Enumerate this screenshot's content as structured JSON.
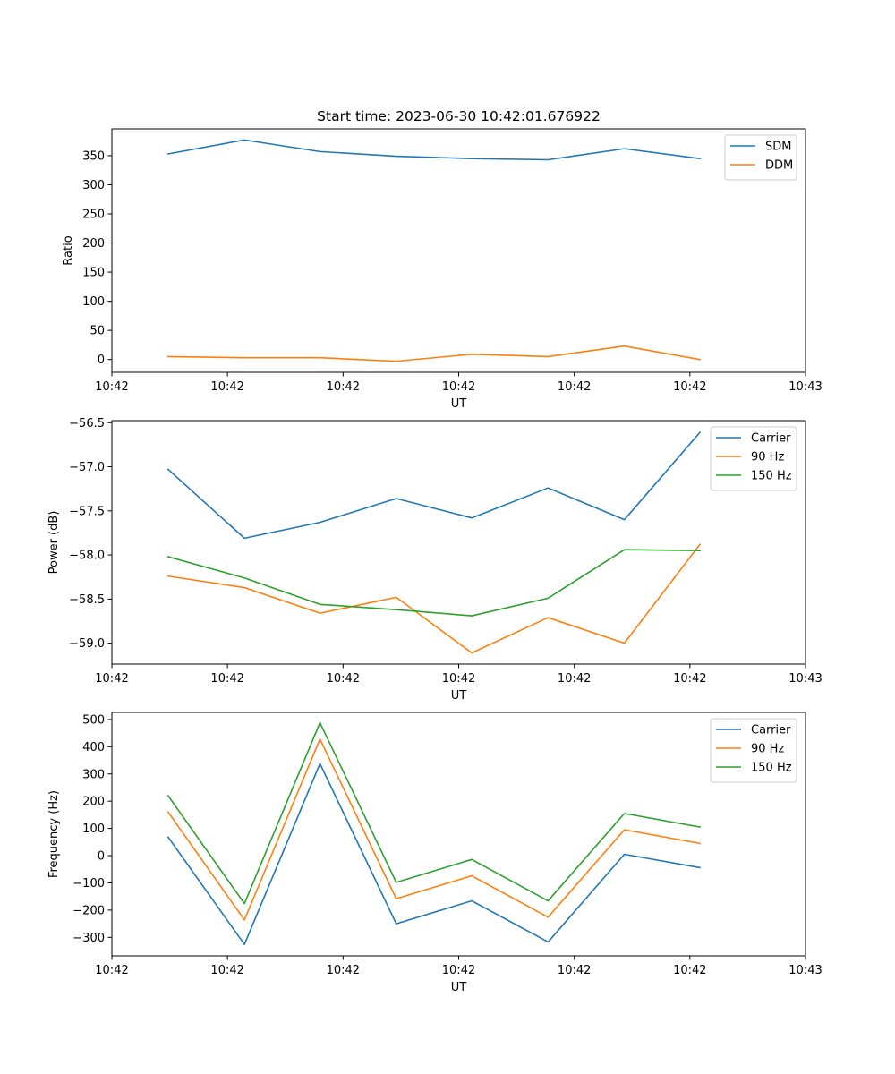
{
  "figure": {
    "title": "Start time: 2023-06-30 10:42:01.676922"
  },
  "colors": {
    "blue": "#1f77b4",
    "orange": "#ff7f0e",
    "green": "#2ca02c"
  },
  "chart_data": [
    {
      "type": "line",
      "title": "Start time: 2023-06-30 10:42:01.676922",
      "xlabel": "UT",
      "ylabel": "Ratio",
      "xlim": [
        0,
        9
      ],
      "x_tick_positions": [
        0,
        1.5,
        3,
        4.5,
        6,
        7.5,
        9
      ],
      "x_tick_labels": [
        "10:42",
        "10:42",
        "10:42",
        "10:42",
        "10:42",
        "10:42",
        "10:43"
      ],
      "ylim": [
        -22,
        396
      ],
      "y_ticks": [
        0,
        50,
        100,
        150,
        200,
        250,
        300,
        350
      ],
      "grid": false,
      "legend": "top-right",
      "x": [
        0.73,
        1.72,
        2.7,
        3.69,
        4.67,
        5.66,
        6.65,
        7.63
      ],
      "series": [
        {
          "name": "SDM",
          "color": "#1f77b4",
          "values": [
            353,
            377,
            357,
            349,
            345,
            343,
            362,
            345
          ]
        },
        {
          "name": "DDM",
          "color": "#ff7f0e",
          "values": [
            5,
            3,
            3,
            -3,
            9,
            5,
            23,
            0
          ]
        }
      ]
    },
    {
      "type": "line",
      "title": "",
      "xlabel": "UT",
      "ylabel": "Power (dB)",
      "xlim": [
        0,
        9
      ],
      "x_tick_positions": [
        0,
        1.5,
        3,
        4.5,
        6,
        7.5,
        9
      ],
      "x_tick_labels": [
        "10:42",
        "10:42",
        "10:42",
        "10:42",
        "10:42",
        "10:42",
        "10:43"
      ],
      "ylim": [
        -59.237,
        -56.477
      ],
      "y_ticks": [
        -59.0,
        -58.5,
        -58.0,
        -57.5,
        -57.0,
        -56.5
      ],
      "y_tick_labels": [
        "−59.0",
        "−58.5",
        "−58.0",
        "−57.5",
        "−57.0",
        "−56.5"
      ],
      "grid": false,
      "legend": "top-right",
      "x": [
        0.73,
        1.72,
        2.7,
        3.69,
        4.67,
        5.66,
        6.65,
        7.63
      ],
      "series": [
        {
          "name": "Carrier",
          "color": "#1f77b4",
          "values": [
            -57.03,
            -57.81,
            -57.63,
            -57.36,
            -57.58,
            -57.24,
            -57.6,
            -56.61
          ]
        },
        {
          "name": "90 Hz",
          "color": "#ff7f0e",
          "values": [
            -58.24,
            -58.37,
            -58.66,
            -58.48,
            -59.11,
            -58.71,
            -59.0,
            -57.88
          ]
        },
        {
          "name": "150 Hz",
          "color": "#2ca02c",
          "values": [
            -58.02,
            -58.26,
            -58.56,
            -58.62,
            -58.69,
            -58.49,
            -57.94,
            -57.95
          ]
        }
      ]
    },
    {
      "type": "line",
      "title": "",
      "xlabel": "UT",
      "ylabel": "Frequency (Hz)",
      "xlim": [
        0,
        9
      ],
      "x_tick_positions": [
        0,
        1.5,
        3,
        4.5,
        6,
        7.5,
        9
      ],
      "x_tick_labels": [
        "10:42",
        "10:42",
        "10:42",
        "10:42",
        "10:42",
        "10:42",
        "10:43"
      ],
      "ylim": [
        -368,
        526
      ],
      "y_ticks": [
        -300,
        -200,
        -100,
        0,
        100,
        200,
        300,
        400,
        500
      ],
      "y_tick_labels": [
        "−300",
        "−200",
        "−100",
        "0",
        "100",
        "200",
        "300",
        "400",
        "500"
      ],
      "grid": false,
      "legend": "top-right",
      "x": [
        0.73,
        1.72,
        2.7,
        3.69,
        4.67,
        5.66,
        6.65,
        7.63
      ],
      "series": [
        {
          "name": "Carrier",
          "color": "#1f77b4",
          "values": [
            68,
            -326,
            338,
            -250,
            -166,
            -317,
            5,
            -44
          ]
        },
        {
          "name": "90 Hz",
          "color": "#ff7f0e",
          "values": [
            160,
            -236,
            428,
            -158,
            -74,
            -226,
            95,
            45
          ]
        },
        {
          "name": "150 Hz",
          "color": "#2ca02c",
          "values": [
            220,
            -176,
            488,
            -98,
            -14,
            -166,
            155,
            105
          ]
        }
      ]
    }
  ]
}
